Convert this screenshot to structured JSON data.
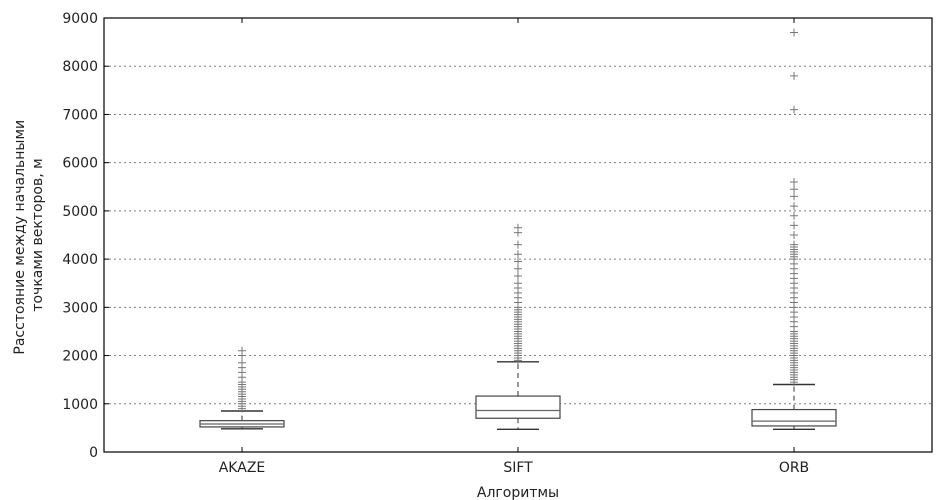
{
  "chart_data": {
    "type": "box",
    "title": "",
    "xlabel": "Алгоритмы",
    "ylabel_lines": [
      "Расстояние между начальными",
      "точками векторов, м"
    ],
    "ylim": [
      0,
      9000
    ],
    "yticks": [
      0,
      1000,
      2000,
      3000,
      4000,
      5000,
      6000,
      7000,
      8000,
      9000
    ],
    "grid": true,
    "categories": [
      "AKAZE",
      "SIFT",
      "ORB"
    ],
    "boxes": [
      {
        "name": "AKAZE",
        "whisker_low": 480,
        "q1": 520,
        "median": 580,
        "q3": 650,
        "whisker_high": 850,
        "outliers": [
          900,
          950,
          1000,
          1050,
          1100,
          1150,
          1200,
          1250,
          1300,
          1350,
          1400,
          1450,
          1550,
          1650,
          1750,
          1850,
          2000,
          2100
        ]
      },
      {
        "name": "SIFT",
        "whisker_low": 470,
        "q1": 700,
        "median": 860,
        "q3": 1160,
        "whisker_high": 1870,
        "outliers": [
          1900,
          1950,
          2000,
          2050,
          2100,
          2150,
          2200,
          2250,
          2300,
          2350,
          2400,
          2450,
          2500,
          2550,
          2600,
          2650,
          2700,
          2750,
          2800,
          2850,
          2900,
          2950,
          3000,
          3100,
          3200,
          3300,
          3400,
          3500,
          3650,
          3800,
          3950,
          4100,
          4300,
          4550,
          4650
        ]
      },
      {
        "name": "ORB",
        "whisker_low": 470,
        "q1": 540,
        "median": 640,
        "q3": 880,
        "whisker_high": 1400,
        "outliers": [
          1450,
          1500,
          1550,
          1600,
          1650,
          1700,
          1750,
          1800,
          1850,
          1900,
          1950,
          2000,
          2050,
          2100,
          2150,
          2200,
          2250,
          2300,
          2350,
          2400,
          2450,
          2500,
          2600,
          2700,
          2800,
          2900,
          3000,
          3100,
          3200,
          3300,
          3400,
          3500,
          3600,
          3700,
          3800,
          3900,
          4000,
          4050,
          4100,
          4150,
          4200,
          4250,
          4300,
          4500,
          4700,
          4900,
          5100,
          5300,
          5450,
          5600,
          7100,
          7800,
          8700
        ]
      }
    ]
  }
}
